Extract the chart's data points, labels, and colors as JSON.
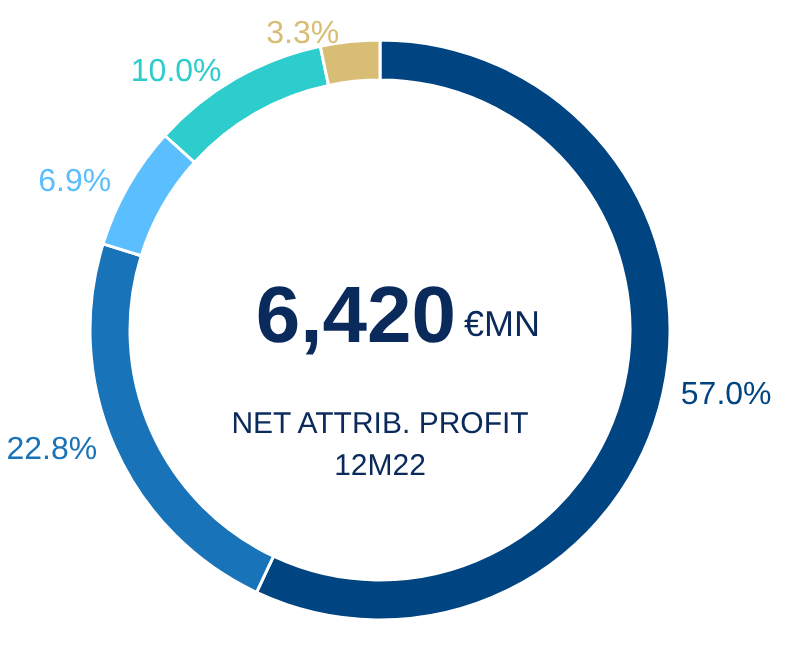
{
  "chart_data": {
    "type": "donut",
    "title": "6,420",
    "subtitle": "€MN",
    "annotations": [
      "NET ATTRIB. PROFIT",
      "12M22"
    ],
    "categories": [
      null,
      null,
      null,
      null,
      null
    ],
    "values": [
      57.0,
      22.8,
      6.9,
      10.0,
      3.3
    ],
    "value_labels": [
      "57.0%",
      "22.8%",
      "6.9%",
      "10.0%",
      "3.3%"
    ],
    "colors": [
      "#004481",
      "#1973b8",
      "#5bbeff",
      "#2dcccd",
      "#d8be75"
    ]
  }
}
